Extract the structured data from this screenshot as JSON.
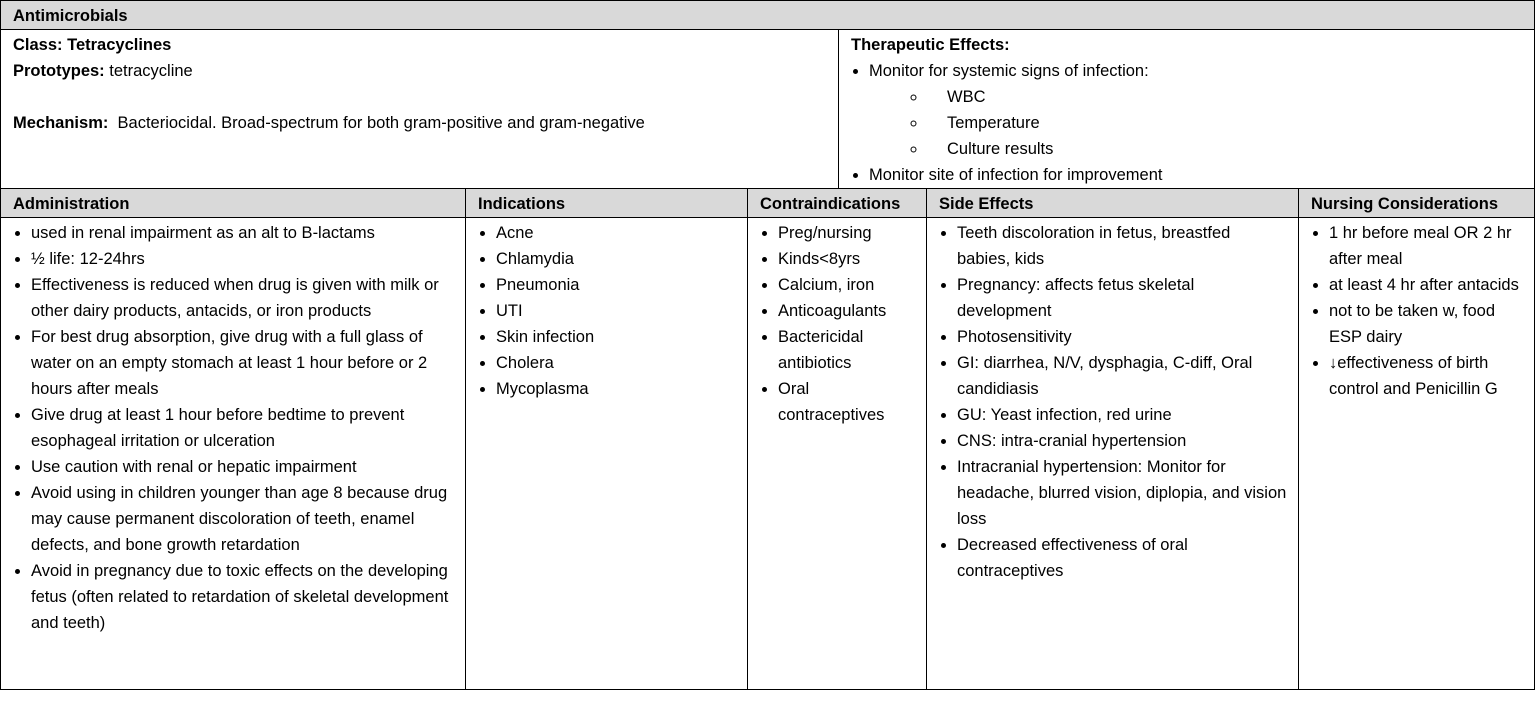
{
  "title": "Antimicrobials",
  "summary": {
    "class": "Class: Tetracyclines",
    "prototypes_label": "Prototypes:",
    "prototypes": "tetracycline",
    "mechanism_label": "Mechanism:",
    "mechanism": "Bacteriocidal.  Broad-spectrum for both gram-positive and gram-negative"
  },
  "therapeutic": {
    "heading": "Therapeutic Effects:",
    "items": [
      {
        "text": "Monitor for systemic signs of infection:",
        "subitems": [
          "WBC",
          "Temperature",
          "Culture results"
        ]
      },
      {
        "text": "Monitor site of infection for improvement",
        "subitems": []
      }
    ]
  },
  "columns": [
    {
      "heading": "Administration",
      "items": [
        "used in renal impairment as an alt to B-lactams",
        "½ life: 12-24hrs",
        "Effectiveness is reduced when drug is given with milk or other dairy products, antacids, or iron products",
        "For best drug absorption, give drug with a full glass of water on an empty stomach at least 1 hour before or 2 hours after meals",
        "Give drug at least 1 hour before bedtime to prevent esophageal irritation or ulceration",
        "Use caution with renal or hepatic impairment",
        "Avoid using in children younger than age 8 because drug may cause permanent discoloration of teeth, enamel defects, and bone growth retardation",
        "Avoid in pregnancy due to toxic effects on the developing fetus (often related to retardation of skeletal development and teeth)"
      ]
    },
    {
      "heading": "Indications",
      "items": [
        "Acne",
        "Chlamydia",
        "Pneumonia",
        "UTI",
        "Skin infection",
        "Cholera",
        "Mycoplasma"
      ]
    },
    {
      "heading": "Contraindications",
      "items": [
        "Preg/nursing",
        "Kinds<8yrs",
        "Calcium, iron",
        "Anticoagulants",
        "Bactericidal antibiotics",
        "Oral contraceptives"
      ]
    },
    {
      "heading": "Side Effects",
      "items": [
        "Teeth discoloration in fetus, breastfed babies, kids",
        "Pregnancy: affects fetus skeletal development",
        "Photosensitivity",
        "GI: diarrhea, N/V, dysphagia, C-diff, Oral candidiasis",
        "GU: Yeast infection, red urine",
        "CNS: intra-cranial hypertension",
        "Intracranial hypertension: Monitor for headache, blurred vision, diplopia, and vision loss",
        "Decreased effectiveness of oral contraceptives"
      ]
    },
    {
      "heading": "Nursing Considerations",
      "items": [
        "1 hr before meal OR 2 hr after meal",
        "at least 4 hr after antacids",
        "not to be taken w, food ESP dairy",
        "↓effectiveness of birth control and Penicillin G"
      ]
    }
  ]
}
